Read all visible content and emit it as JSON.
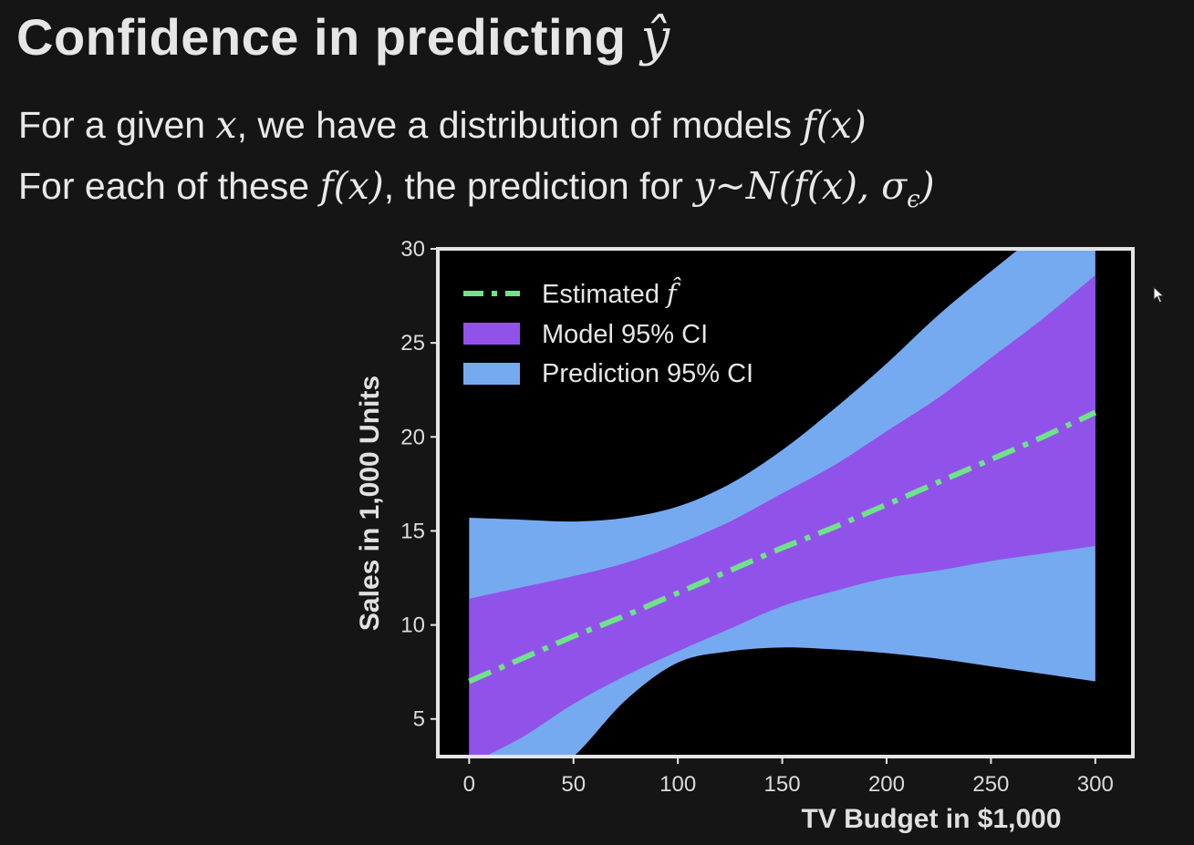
{
  "slide": {
    "title_text": "Confidence in predicting ",
    "title_symbol": "ŷ",
    "line1": {
      "t1": "For a given ",
      "m1": "x",
      "t2": ", we have a distribution of models ",
      "m2": "f(x)"
    },
    "line2": {
      "t1": "For each of these ",
      "m1": "f(x)",
      "t2": ", the prediction for ",
      "m2": "y~N(f(x), σ",
      "m2_sub": "ϵ",
      "m2_end": ")"
    }
  },
  "colors": {
    "background": "#151515",
    "plot_background": "#000000",
    "frame": "#e4e4e4",
    "estimate_line": "#6fe38a",
    "model_ci": "#9152ea",
    "prediction_ci": "#76aaf0"
  },
  "chart_data": {
    "type": "area",
    "title": "",
    "xlabel": "TV Budget in $1,000",
    "ylabel": "Sales in 1,000 Units",
    "xlim": [
      -15,
      318
    ],
    "ylim": [
      3,
      30
    ],
    "xticks": [
      0,
      50,
      100,
      150,
      200,
      250,
      300
    ],
    "yticks": [
      5,
      10,
      15,
      20,
      25,
      30
    ],
    "grid": false,
    "legend": {
      "placement": "top-left",
      "entries": [
        {
          "label": "Estimated ",
          "symbol": "f̂",
          "style": "dash-dot line"
        },
        {
          "label": "Model 95% CI",
          "style": "filled"
        },
        {
          "label": "Prediction 95% CI",
          "style": "filled"
        }
      ]
    },
    "x": [
      0,
      25,
      50,
      75,
      100,
      125,
      150,
      175,
      200,
      225,
      250,
      275,
      300
    ],
    "series": [
      {
        "name": "Estimated f̂",
        "values": [
          7.0,
          8.2,
          9.4,
          10.5,
          11.7,
          12.9,
          14.1,
          15.2,
          16.4,
          17.6,
          18.8,
          20.0,
          21.3
        ]
      },
      {
        "name": "Model 95% CI",
        "lower": [
          2.6,
          4.0,
          5.8,
          7.3,
          8.6,
          9.8,
          11.0,
          11.8,
          12.5,
          12.9,
          13.4,
          13.8,
          14.2
        ],
        "upper": [
          11.4,
          12.0,
          12.6,
          13.3,
          14.3,
          15.5,
          17.0,
          18.5,
          20.3,
          22.1,
          24.2,
          26.3,
          28.6
        ]
      },
      {
        "name": "Prediction 95% CI",
        "lower": [
          -1.0,
          1.0,
          3.0,
          6.0,
          8.0,
          8.6,
          8.8,
          8.7,
          8.5,
          8.2,
          7.8,
          7.4,
          7.0
        ],
        "upper": [
          15.7,
          15.6,
          15.5,
          15.7,
          16.3,
          17.5,
          19.3,
          21.5,
          23.9,
          26.5,
          28.8,
          31.0,
          33.0
        ]
      }
    ]
  }
}
